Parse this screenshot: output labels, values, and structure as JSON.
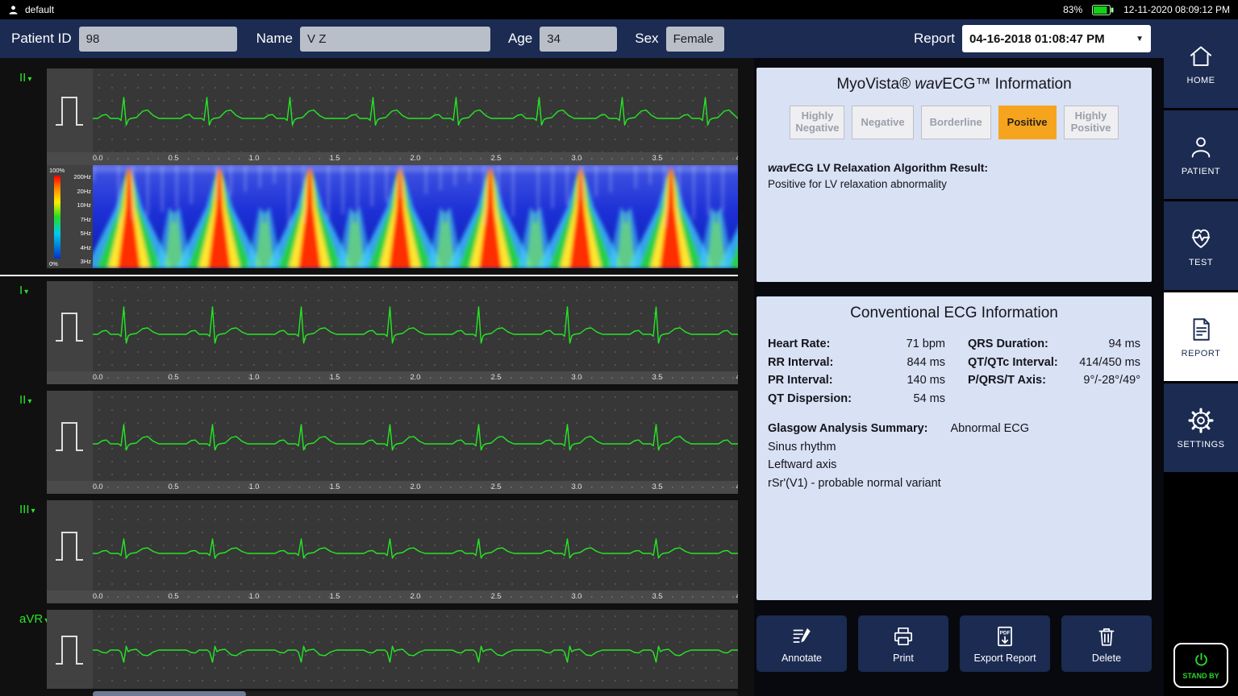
{
  "status_bar": {
    "user": "default",
    "battery_percent": "83%",
    "datetime": "12-11-2020 08:09:12 PM"
  },
  "header": {
    "patient_id_label": "Patient ID",
    "patient_id_value": "98",
    "name_label": "Name",
    "name_value": "V Z",
    "age_label": "Age",
    "age_value": "34",
    "sex_label": "Sex",
    "sex_value": "Female",
    "report_label": "Report",
    "report_value": "04-16-2018 01:08:47 PM"
  },
  "sidebar": {
    "items": [
      {
        "label": "HOME"
      },
      {
        "label": "PATIENT"
      },
      {
        "label": "TEST"
      },
      {
        "label": "REPORT"
      },
      {
        "label": "SETTINGS"
      }
    ],
    "standby_label": "STAND BY"
  },
  "ecg": {
    "leads": [
      "II",
      "I",
      "II",
      "III",
      "aVR"
    ],
    "x_ticks": [
      "0.0",
      "0.5",
      "1.0",
      "1.5",
      "2.0",
      "2.5",
      "3.0",
      "3.5",
      "4"
    ],
    "spectrogram": {
      "scale_top": "100%",
      "scale_bottom": "0%",
      "freq_labels": [
        "200Hz",
        "20Hz",
        "10Hz",
        "7Hz",
        "5Hz",
        "4Hz",
        "3Hz"
      ]
    }
  },
  "wavecg_panel": {
    "title_pre": "MyoVista® ",
    "title_italic": "wav",
    "title_post": "ECG™ Information",
    "buttons": [
      "Highly Negative",
      "Negative",
      "Borderline",
      "Positive",
      "Highly Positive"
    ],
    "selected": "Positive",
    "result_label_italic": "wav",
    "result_label_rest": "ECG LV Relaxation Algorithm Result:",
    "result_text": "Positive for LV relaxation abnormality"
  },
  "ecg_info": {
    "title": "Conventional ECG Information",
    "metrics_left": [
      {
        "label": "Heart Rate:",
        "value": "71 bpm"
      },
      {
        "label": "RR Interval:",
        "value": "844 ms"
      },
      {
        "label": "PR Interval:",
        "value": "140 ms"
      },
      {
        "label": "QT Dispersion:",
        "value": "54 ms"
      }
    ],
    "metrics_right": [
      {
        "label": "QRS Duration:",
        "value": "94 ms"
      },
      {
        "label": "QT/QTc Interval:",
        "value": "414/450 ms"
      },
      {
        "label": "P/QRS/T Axis:",
        "value": "9°/-28°/49°"
      }
    ],
    "glasgow_label": "Glasgow Analysis Summary:",
    "glasgow_value": "Abnormal ECG",
    "glasgow_lines": [
      "Sinus rhythm",
      "Leftward axis",
      "rSr'(V1) - probable normal variant"
    ]
  },
  "actions": [
    {
      "label": "Annotate"
    },
    {
      "label": "Print"
    },
    {
      "label": "Export Report"
    },
    {
      "label": "Delete"
    }
  ]
}
